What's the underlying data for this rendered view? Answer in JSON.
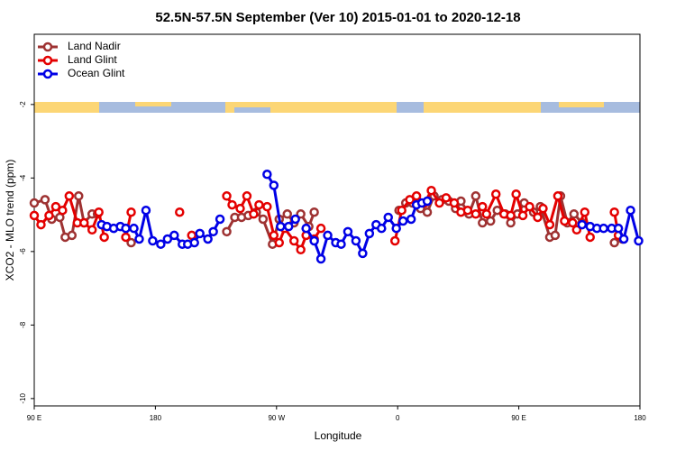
{
  "chart_data": {
    "type": "line",
    "title": "52.5N-57.5N September (Ver 10)   2015-01-01 to 2020-12-18",
    "xlabel": "Longitude",
    "ylabel": "XCO2 - MLO trend (ppm)",
    "xlim": [
      90,
      540
    ],
    "ylim": [
      -10.2,
      -0.09
    ],
    "xticks": [
      {
        "value": 90,
        "label": "90 E"
      },
      {
        "value": 180,
        "label": "180"
      },
      {
        "value": 270,
        "label": "90 W"
      },
      {
        "value": 360,
        "label": "0"
      },
      {
        "value": 450,
        "label": "90 E"
      },
      {
        "value": 540,
        "label": "180"
      }
    ],
    "yticks": [
      -2,
      -4,
      -6,
      -8,
      -10
    ],
    "legend": "top-left",
    "series": [
      {
        "name": "Land Nadir",
        "color": "#9e3232",
        "x": [
          90,
          98,
          103,
          109,
          113,
          118,
          123,
          127,
          133,
          137,
          150,
          162,
          200,
          233,
          239,
          244,
          249,
          255,
          260,
          267,
          272,
          278,
          283,
          288,
          294,
          298,
          330,
          361,
          366,
          371,
          377,
          382,
          387,
          393,
          398,
          403,
          407,
          413,
          418,
          423,
          429,
          434,
          440,
          444,
          449,
          454,
          461,
          466,
          473,
          477,
          481,
          486,
          491,
          497,
          510,
          521,
          527
        ],
        "values": [
          -4.68,
          -4.59,
          -5.12,
          -5.07,
          -5.61,
          -5.56,
          -4.49,
          -5.22,
          -4.98,
          -4.98,
          null,
          -5.76,
          null,
          -5.46,
          -5.07,
          -5.07,
          -5.02,
          -4.93,
          -5.12,
          -5.8,
          -5.12,
          -4.98,
          -5.22,
          -4.98,
          -5.32,
          -4.93,
          null,
          -4.88,
          -4.68,
          -4.68,
          -4.83,
          -4.93,
          -4.49,
          -4.59,
          -4.63,
          -4.83,
          -4.63,
          -4.98,
          -4.49,
          -5.22,
          -5.17,
          -4.88,
          -4.98,
          -5.22,
          -4.98,
          -4.68,
          -4.93,
          -4.78,
          -5.61,
          -5.56,
          -4.49,
          -5.22,
          -4.98,
          -5.22,
          null,
          -5.76,
          -5.66
        ]
      },
      {
        "name": "Land Glint",
        "color": "#e40000",
        "x": [
          90,
          95,
          101,
          106,
          111,
          116,
          122,
          127,
          133,
          138,
          142,
          150,
          158,
          162,
          180,
          198,
          203,
          207,
          220,
          233,
          237,
          243,
          248,
          253,
          257,
          263,
          268,
          272,
          276,
          283,
          288,
          292,
          298,
          303,
          330,
          358,
          363,
          369,
          374,
          380,
          385,
          391,
          396,
          402,
          407,
          412,
          418,
          423,
          426,
          433,
          439,
          444,
          448,
          453,
          458,
          464,
          468,
          473,
          479,
          484,
          490,
          493,
          499,
          503,
          510,
          521,
          524
        ],
        "values": [
          -5.02,
          -5.27,
          -5.02,
          -4.78,
          -4.88,
          -4.49,
          -5.22,
          -5.22,
          -5.41,
          -4.93,
          -5.61,
          null,
          -5.61,
          -4.93,
          null,
          -4.93,
          null,
          -5.56,
          null,
          -4.49,
          -4.73,
          -4.83,
          -4.49,
          -4.98,
          -4.73,
          -4.78,
          -5.56,
          -5.76,
          -5.37,
          -5.71,
          -5.95,
          -5.56,
          -5.66,
          -5.37,
          null,
          -5.71,
          -4.88,
          -4.59,
          -4.49,
          -4.68,
          -4.34,
          -4.68,
          -4.54,
          -4.68,
          -4.93,
          -4.88,
          -4.98,
          -4.78,
          -4.98,
          -4.44,
          -4.98,
          -5.02,
          -4.44,
          -5.02,
          -4.78,
          -5.07,
          -4.83,
          -5.27,
          -4.49,
          -5.17,
          -5.22,
          -5.41,
          -4.93,
          -5.61,
          null,
          -4.93,
          -5.56
        ]
      },
      {
        "name": "Ocean Glint",
        "color": "#0000e6",
        "x": [
          140,
          144,
          149,
          154,
          158,
          164,
          168,
          173,
          178,
          184,
          189,
          194,
          200,
          204,
          209,
          213,
          219,
          223,
          228,
          245,
          263,
          268,
          273,
          279,
          284,
          288,
          292,
          298,
          303,
          308,
          314,
          318,
          323,
          329,
          334,
          339,
          344,
          348,
          353,
          359,
          364,
          370,
          374,
          378,
          382,
          440,
          497,
          503,
          508,
          513,
          519,
          524,
          528,
          533,
          539
        ],
        "values": [
          -5.27,
          -5.32,
          -5.37,
          -5.32,
          -5.37,
          -5.37,
          -5.66,
          -4.88,
          -5.71,
          -5.8,
          -5.66,
          -5.56,
          -5.8,
          -5.8,
          -5.76,
          -5.51,
          -5.66,
          -5.46,
          -5.12,
          null,
          -3.9,
          -4.2,
          -5.32,
          -5.32,
          -5.12,
          null,
          -5.37,
          -5.71,
          -6.2,
          -5.56,
          -5.76,
          -5.8,
          -5.46,
          -5.71,
          -6.05,
          -5.51,
          -5.27,
          -5.37,
          -5.07,
          -5.37,
          -5.17,
          -5.12,
          -4.73,
          -4.68,
          -4.63,
          null,
          -5.27,
          -5.32,
          -5.37,
          -5.37,
          -5.37,
          -5.37,
          -5.66,
          -4.88,
          -5.71
        ]
      }
    ]
  }
}
